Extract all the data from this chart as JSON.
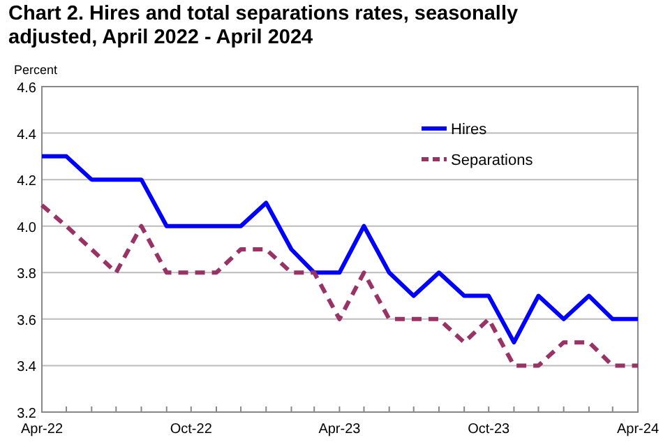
{
  "chart_data": {
    "type": "line",
    "title": "Chart 2. Hires and total separations rates, seasonally adjusted, April 2022 - April 2024",
    "ylabel": "Percent",
    "x": [
      "2022-04",
      "2022-05",
      "2022-06",
      "2022-07",
      "2022-08",
      "2022-09",
      "2022-10",
      "2022-11",
      "2022-12",
      "2023-01",
      "2023-02",
      "2023-03",
      "2023-04",
      "2023-05",
      "2023-06",
      "2023-07",
      "2023-08",
      "2023-09",
      "2023-10",
      "2023-11",
      "2023-12",
      "2024-01",
      "2024-02",
      "2024-03",
      "2024-04"
    ],
    "series": [
      {
        "name": "Hires",
        "color": "#0000ff",
        "line_style": "solid",
        "values": [
          4.3,
          4.3,
          4.2,
          4.2,
          4.2,
          4.0,
          4.0,
          4.0,
          4.0,
          4.1,
          3.9,
          3.8,
          3.8,
          4.0,
          3.8,
          3.7,
          3.8,
          3.7,
          3.7,
          3.5,
          3.7,
          3.6,
          3.7,
          3.6,
          3.6
        ]
      },
      {
        "name": "Separations",
        "color": "#993366",
        "line_style": "dashed",
        "values": [
          4.09,
          4.0,
          3.9,
          3.8,
          4.0,
          3.8,
          3.8,
          3.8,
          3.9,
          3.9,
          3.8,
          3.8,
          3.6,
          3.8,
          3.6,
          3.6,
          3.6,
          3.5,
          3.6,
          3.4,
          3.4,
          3.5,
          3.5,
          3.4,
          3.4
        ]
      }
    ],
    "xlim": [
      "2022-04",
      "2024-04"
    ],
    "xticks": [
      {
        "value": "2022-04",
        "label": "Apr-22"
      },
      {
        "value": "2022-05",
        "label": null
      },
      {
        "value": "2022-06",
        "label": null
      },
      {
        "value": "2022-07",
        "label": null
      },
      {
        "value": "2022-08",
        "label": null
      },
      {
        "value": "2022-09",
        "label": null
      },
      {
        "value": "2022-10",
        "label": "Oct-22"
      },
      {
        "value": "2022-11",
        "label": null
      },
      {
        "value": "2022-12",
        "label": null
      },
      {
        "value": "2023-01",
        "label": null
      },
      {
        "value": "2023-02",
        "label": null
      },
      {
        "value": "2023-03",
        "label": null
      },
      {
        "value": "2023-04",
        "label": "Apr-23"
      },
      {
        "value": "2023-05",
        "label": null
      },
      {
        "value": "2023-06",
        "label": null
      },
      {
        "value": "2023-07",
        "label": null
      },
      {
        "value": "2023-08",
        "label": null
      },
      {
        "value": "2023-09",
        "label": null
      },
      {
        "value": "2023-10",
        "label": "Oct-23"
      },
      {
        "value": "2023-11",
        "label": null
      },
      {
        "value": "2023-12",
        "label": null
      },
      {
        "value": "2024-01",
        "label": null
      },
      {
        "value": "2024-02",
        "label": null
      },
      {
        "value": "2024-03",
        "label": null
      },
      {
        "value": "2024-04",
        "label": "Apr-24"
      }
    ],
    "ylim": [
      3.2,
      4.6
    ],
    "yticks": [
      {
        "value": 3.2,
        "label": "3.2"
      },
      {
        "value": 3.4,
        "label": "3.4"
      },
      {
        "value": 3.6,
        "label": "3.6"
      },
      {
        "value": 3.8,
        "label": "3.8"
      },
      {
        "value": 4.0,
        "label": "4.0"
      },
      {
        "value": 4.2,
        "label": "4.2"
      },
      {
        "value": 4.4,
        "label": "4.4"
      },
      {
        "value": 4.6,
        "label": "4.6"
      }
    ],
    "grid": "y",
    "legend": "top right",
    "marker": "none"
  }
}
